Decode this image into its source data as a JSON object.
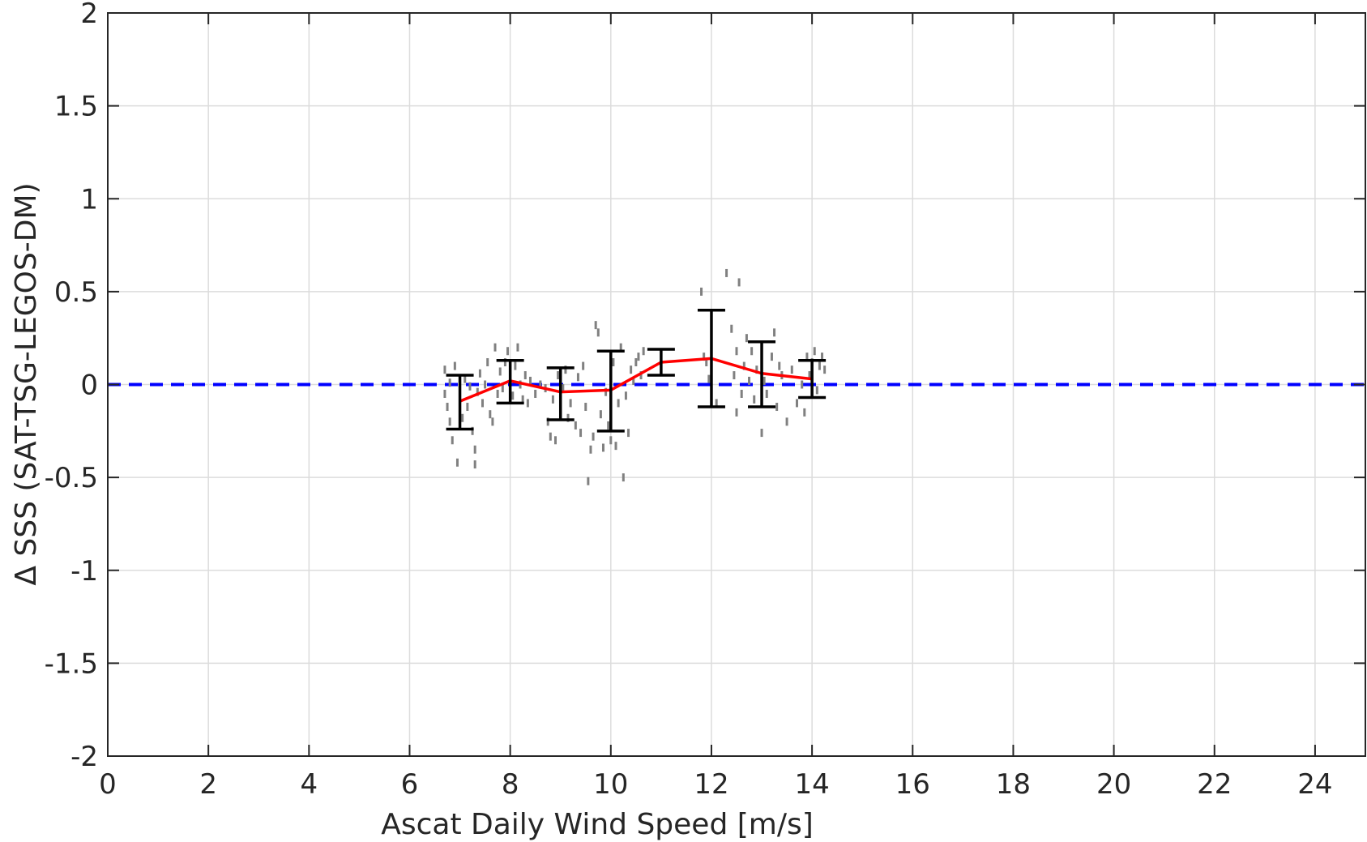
{
  "chart_data": {
    "type": "scatter",
    "title": "",
    "xlabel": "Ascat Daily Wind Speed [m/s]",
    "ylabel": "Δ SSS (SAT-TSG-LEGOS-DM)",
    "xlim": [
      0,
      25
    ],
    "ylim": [
      -2,
      2
    ],
    "xticks": [
      0,
      2,
      4,
      6,
      8,
      10,
      12,
      14,
      16,
      18,
      20,
      22,
      24
    ],
    "xtick_labels": [
      "0",
      "2",
      "4",
      "6",
      "8",
      "10",
      "12",
      "14",
      "16",
      "18",
      "20",
      "22",
      "24"
    ],
    "yticks": [
      -2,
      -1.5,
      -1,
      -0.5,
      0,
      0.5,
      1,
      1.5,
      2
    ],
    "ytick_labels": [
      "-2",
      "-1.5",
      "-1",
      "-0.5",
      "0",
      "0.5",
      "1",
      "1.5",
      "2"
    ],
    "grid": true,
    "reference_line": {
      "y": 0,
      "style": "dashed",
      "color": "#0000ff"
    },
    "mean_line": {
      "color": "#ff0000",
      "x": [
        7,
        8,
        9,
        10,
        11,
        12,
        13,
        14
      ],
      "y": [
        -0.09,
        0.02,
        -0.04,
        -0.03,
        0.12,
        0.14,
        0.06,
        0.03
      ]
    },
    "error_bars": {
      "color": "#000000",
      "x": [
        7,
        8,
        9,
        10,
        11,
        12,
        13,
        14
      ],
      "low": [
        -0.24,
        -0.1,
        -0.19,
        -0.25,
        0.05,
        -0.12,
        -0.12,
        -0.07
      ],
      "high": [
        0.05,
        0.13,
        0.09,
        0.18,
        0.19,
        0.4,
        0.23,
        0.13
      ]
    },
    "scatter": {
      "color": "#808080",
      "points": [
        [
          6.7,
          0.08
        ],
        [
          6.7,
          -0.05
        ],
        [
          6.75,
          -0.12
        ],
        [
          6.8,
          -0.2
        ],
        [
          6.8,
          0.01
        ],
        [
          6.85,
          -0.3
        ],
        [
          6.9,
          0.1
        ],
        [
          6.95,
          -0.42
        ],
        [
          7.0,
          -0.08
        ],
        [
          7.05,
          -0.18
        ],
        [
          7.1,
          0.03
        ],
        [
          7.15,
          -0.12
        ],
        [
          7.2,
          -0.01
        ],
        [
          7.25,
          -0.25
        ],
        [
          7.3,
          -0.35
        ],
        [
          7.3,
          -0.43
        ],
        [
          7.35,
          -0.04
        ],
        [
          7.4,
          0.06
        ],
        [
          7.45,
          -0.1
        ],
        [
          7.5,
          0.0
        ],
        [
          7.55,
          0.12
        ],
        [
          7.6,
          -0.16
        ],
        [
          7.65,
          -0.2
        ],
        [
          7.7,
          0.2
        ],
        [
          7.75,
          -0.05
        ],
        [
          7.8,
          0.07
        ],
        [
          7.85,
          -0.02
        ],
        [
          7.9,
          0.12
        ],
        [
          7.95,
          0.18
        ],
        [
          8.0,
          0.01
        ],
        [
          8.05,
          -0.06
        ],
        [
          8.1,
          0.1
        ],
        [
          8.15,
          0.2
        ],
        [
          8.2,
          0.0
        ],
        [
          8.25,
          -0.08
        ],
        [
          8.3,
          0.05
        ],
        [
          8.35,
          -0.1
        ],
        [
          8.4,
          0.02
        ],
        [
          8.5,
          -0.05
        ],
        [
          8.6,
          0.0
        ],
        [
          8.7,
          -0.02
        ],
        [
          8.75,
          -0.2
        ],
        [
          8.8,
          -0.28
        ],
        [
          8.85,
          -0.08
        ],
        [
          8.9,
          -0.3
        ],
        [
          8.95,
          0.05
        ],
        [
          9.0,
          -0.14
        ],
        [
          9.05,
          -0.02
        ],
        [
          9.1,
          0.08
        ],
        [
          9.15,
          -0.18
        ],
        [
          9.2,
          -0.1
        ],
        [
          9.3,
          -0.22
        ],
        [
          9.35,
          0.04
        ],
        [
          9.4,
          -0.26
        ],
        [
          9.45,
          0.1
        ],
        [
          9.5,
          -0.12
        ],
        [
          9.55,
          -0.52
        ],
        [
          9.6,
          -0.35
        ],
        [
          9.65,
          -0.28
        ],
        [
          9.7,
          0.32
        ],
        [
          9.75,
          0.28
        ],
        [
          9.8,
          -0.16
        ],
        [
          9.85,
          -0.34
        ],
        [
          9.9,
          -0.04
        ],
        [
          9.95,
          -0.22
        ],
        [
          10.0,
          -0.3
        ],
        [
          10.05,
          0.12
        ],
        [
          10.1,
          -0.33
        ],
        [
          10.15,
          -0.1
        ],
        [
          10.2,
          0.2
        ],
        [
          10.25,
          -0.5
        ],
        [
          10.3,
          -0.06
        ],
        [
          10.35,
          -0.26
        ],
        [
          10.4,
          0.08
        ],
        [
          10.45,
          0.02
        ],
        [
          10.5,
          0.12
        ],
        [
          10.55,
          0.15
        ],
        [
          10.6,
          0.05
        ],
        [
          10.65,
          0.18
        ],
        [
          11.8,
          0.5
        ],
        [
          11.85,
          0.15
        ],
        [
          11.9,
          0.12
        ],
        [
          11.95,
          0.03
        ],
        [
          12.0,
          0.18
        ],
        [
          12.1,
          -0.1
        ],
        [
          12.3,
          0.6
        ],
        [
          12.4,
          0.3
        ],
        [
          12.45,
          0.05
        ],
        [
          12.5,
          -0.15
        ],
        [
          12.5,
          0.18
        ],
        [
          12.55,
          0.55
        ],
        [
          12.6,
          -0.05
        ],
        [
          12.65,
          0.1
        ],
        [
          12.7,
          0.25
        ],
        [
          12.75,
          0.02
        ],
        [
          12.8,
          0.18
        ],
        [
          12.85,
          -0.08
        ],
        [
          12.9,
          0.08
        ],
        [
          13.0,
          0.2
        ],
        [
          13.0,
          -0.26
        ],
        [
          13.05,
          0.02
        ],
        [
          13.1,
          -0.05
        ],
        [
          13.2,
          0.15
        ],
        [
          13.25,
          0.28
        ],
        [
          13.3,
          -0.12
        ],
        [
          13.35,
          0.1
        ],
        [
          13.4,
          0.05
        ],
        [
          13.5,
          -0.2
        ],
        [
          13.6,
          0.08
        ],
        [
          13.7,
          -0.1
        ],
        [
          13.8,
          0.0
        ],
        [
          13.85,
          -0.15
        ],
        [
          13.9,
          0.15
        ],
        [
          13.95,
          0.05
        ],
        [
          14.0,
          0.12
        ],
        [
          14.05,
          0.18
        ],
        [
          14.1,
          -0.03
        ],
        [
          14.15,
          0.1
        ],
        [
          14.2,
          0.15
        ],
        [
          14.25,
          0.08
        ]
      ]
    }
  }
}
